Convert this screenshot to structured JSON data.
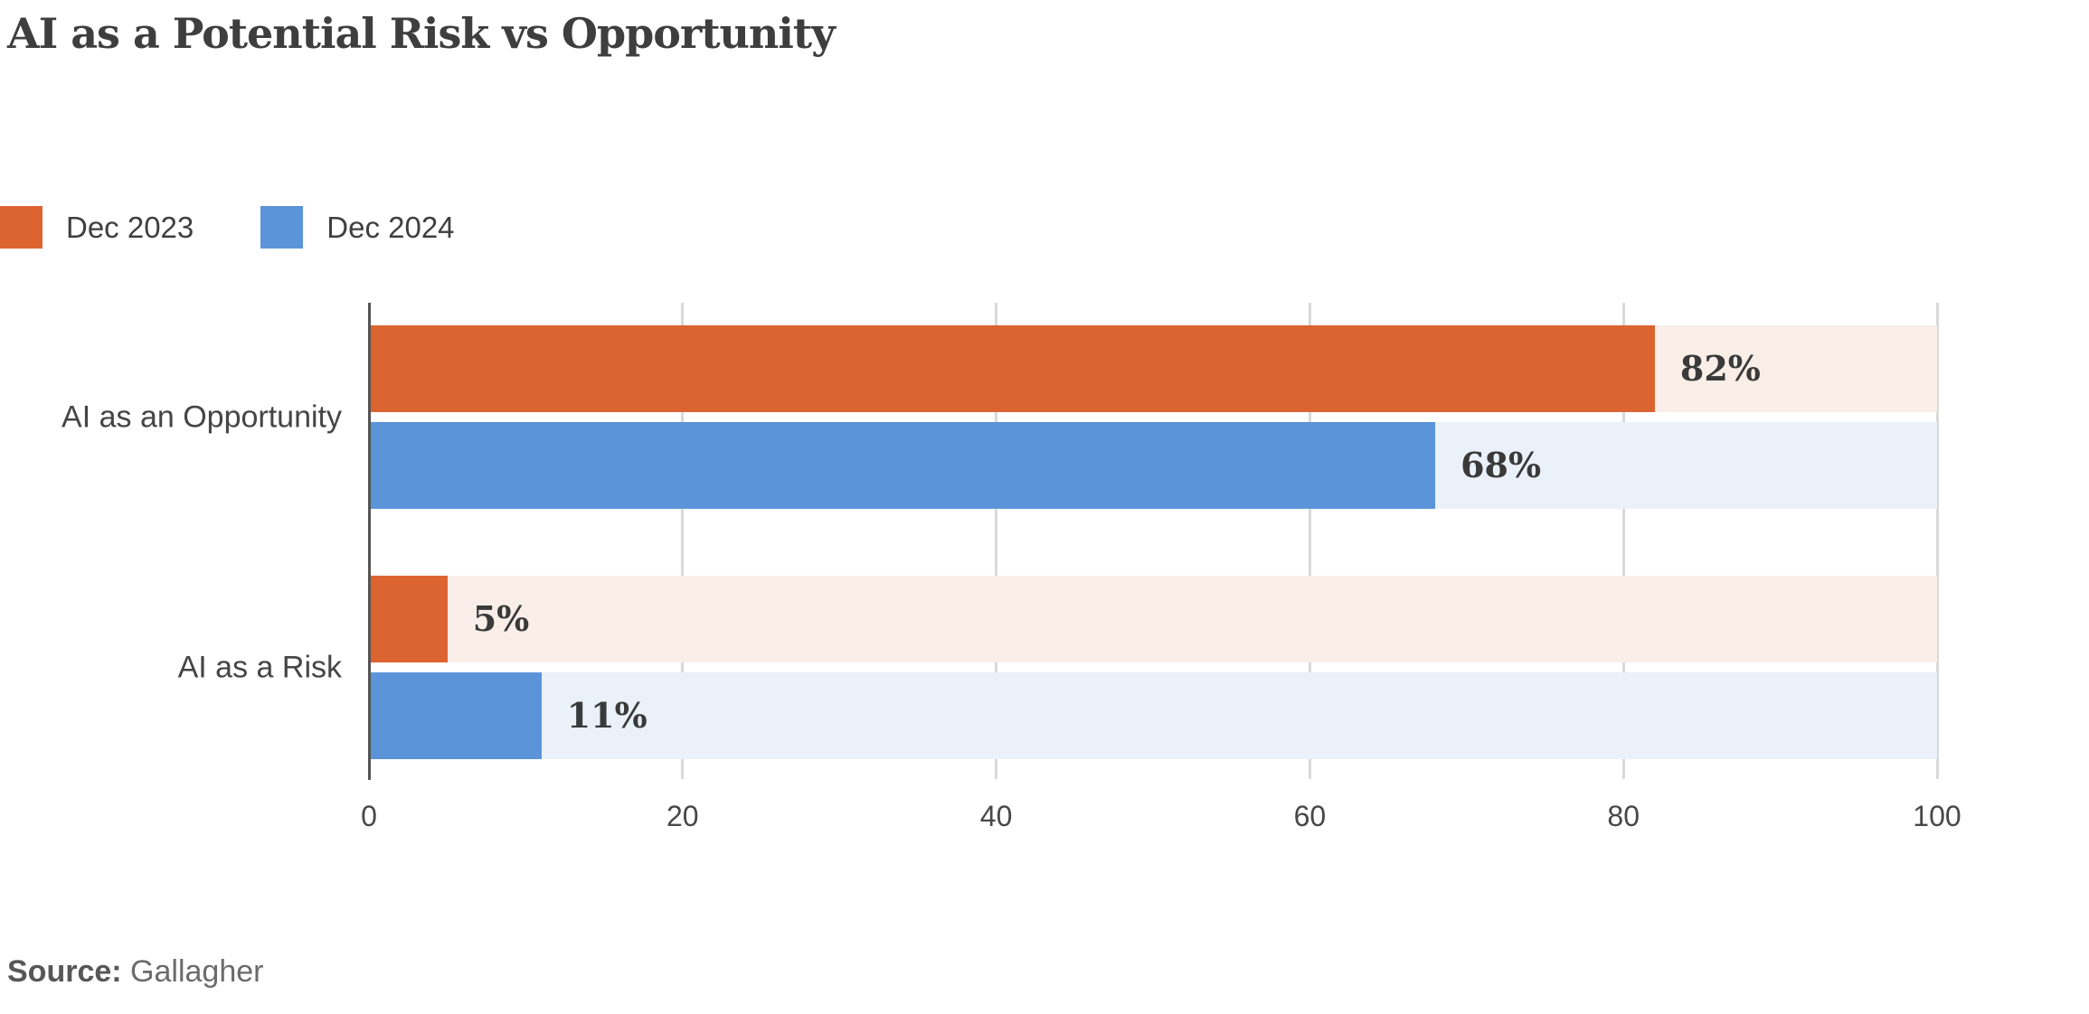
{
  "title": "AI as a Potential Risk vs Opportunity",
  "legend": {
    "items": [
      {
        "label": "Dec 2023",
        "color": "#dc6430"
      },
      {
        "label": "Dec 2024",
        "color": "#5b94d8"
      }
    ]
  },
  "chart_data": {
    "type": "bar",
    "orientation": "horizontal",
    "title": "AI as a Potential Risk vs Opportunity",
    "categories": [
      "AI as an Opportunity",
      "AI as a Risk"
    ],
    "series": [
      {
        "name": "Dec 2023",
        "values": [
          82,
          5
        ],
        "color": "#dc6430",
        "track_color": "#f9eee8"
      },
      {
        "name": "Dec 2024",
        "values": [
          68,
          11
        ],
        "color": "#5b94d8",
        "track_color": "#eaf1f9"
      }
    ],
    "value_labels": [
      [
        "82%",
        "5%"
      ],
      [
        "68%",
        "11%"
      ]
    ],
    "value_suffix": "%",
    "xlim": [
      0,
      100
    ],
    "x_ticks": [
      0,
      20,
      40,
      60,
      80,
      100
    ],
    "grid": true,
    "legend_position": "top-left",
    "axis_color": "#555555",
    "gridline_color": "#d9d9d9"
  },
  "source": {
    "prefix": "Source:",
    "text": "Gallagher"
  }
}
